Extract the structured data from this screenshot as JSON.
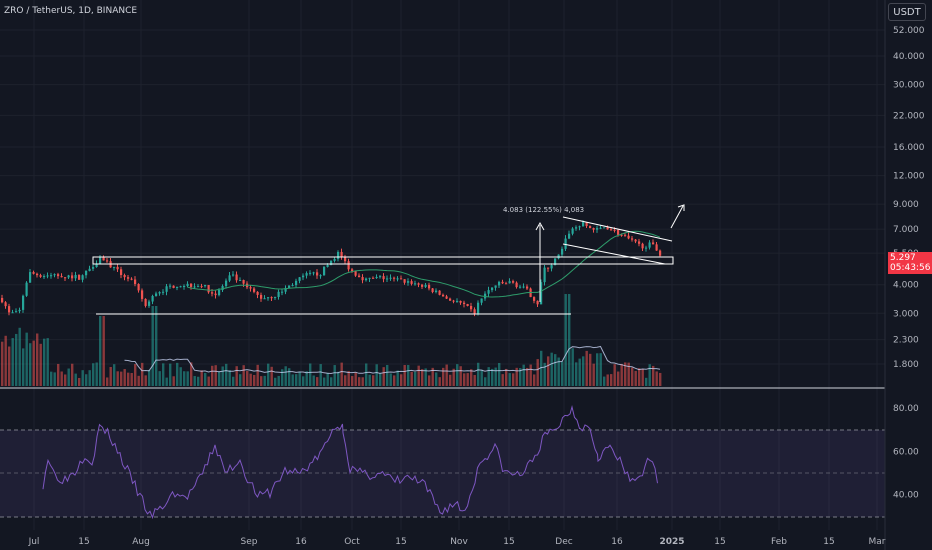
{
  "header": {
    "title": "ZRO / TetherUS, 1D, BINANCE",
    "currency": "USDT"
  },
  "last_price": {
    "price": "5.297",
    "countdown": "05:43:56"
  },
  "colors": {
    "background": "#131722",
    "up": "#26a69a",
    "down": "#ef5350",
    "ma": "#2e9d6b",
    "volume_ma": "#c7d2f2",
    "rsi": "#7e57c2",
    "box": "#ffffff",
    "price_tag": "#f23645"
  },
  "chart_data": [
    {
      "type": "candlestick",
      "y_scale": "log",
      "y_ticks": [
        "52.000",
        "40.000",
        "30.000",
        "22.000",
        "16.000",
        "12.000",
        "9.000",
        "7.000",
        "5.500",
        "4.000",
        "3.000",
        "2.300",
        "1.800"
      ],
      "y_tick_values": [
        52,
        40,
        30,
        22,
        16,
        12,
        9,
        7,
        5.5,
        4,
        3,
        2.3,
        1.8
      ],
      "x_ticks": [
        "Jul",
        "15",
        "Aug",
        "Sep",
        "16",
        "Oct",
        "15",
        "Nov",
        "15",
        "Dec",
        "16",
        "2025",
        "15",
        "Feb",
        "15",
        "Mar"
      ],
      "annotation": "4.083 (122.55%) 4,083",
      "last_price": 5.297
    },
    {
      "type": "line",
      "indicator": "RSI",
      "y_ticks": [
        "80.00",
        "60.00",
        "40.00"
      ],
      "y_tick_values": [
        80,
        60,
        40
      ],
      "band": [
        30,
        70
      ],
      "mid": 50
    }
  ]
}
